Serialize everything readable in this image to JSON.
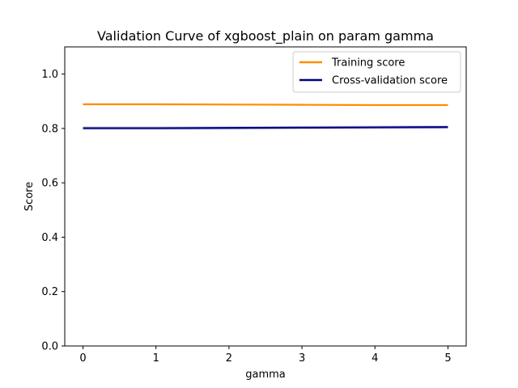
{
  "chart_data": {
    "type": "line",
    "title": "Validation Curve of xgboost_plain on param gamma",
    "xlabel": "gamma",
    "ylabel": "Score",
    "xlim": [
      -0.25,
      5.25
    ],
    "ylim": [
      0.0,
      1.1
    ],
    "xticks": [
      0,
      1,
      2,
      3,
      4,
      5
    ],
    "yticks": [
      0.0,
      0.2,
      0.4,
      0.6,
      0.8,
      1.0
    ],
    "xtick_labels": [
      "0",
      "1",
      "2",
      "3",
      "4",
      "5"
    ],
    "ytick_labels": [
      "0.0",
      "0.2",
      "0.4",
      "0.6",
      "0.8",
      "1.0"
    ],
    "grid": false,
    "legend_position": "top-right",
    "x": [
      0,
      1,
      2,
      3,
      4,
      5
    ],
    "series": [
      {
        "name": "Training score",
        "color": "#ff8c00",
        "values": [
          0.889,
          0.889,
          0.888,
          0.887,
          0.886,
          0.886
        ],
        "band": [
          0.002,
          0.002,
          0.002,
          0.002,
          0.002,
          0.002
        ]
      },
      {
        "name": "Cross-validation score",
        "color": "#000080",
        "values": [
          0.801,
          0.801,
          0.802,
          0.803,
          0.804,
          0.805
        ],
        "band": [
          0.006,
          0.006,
          0.006,
          0.006,
          0.006,
          0.006
        ]
      }
    ]
  }
}
